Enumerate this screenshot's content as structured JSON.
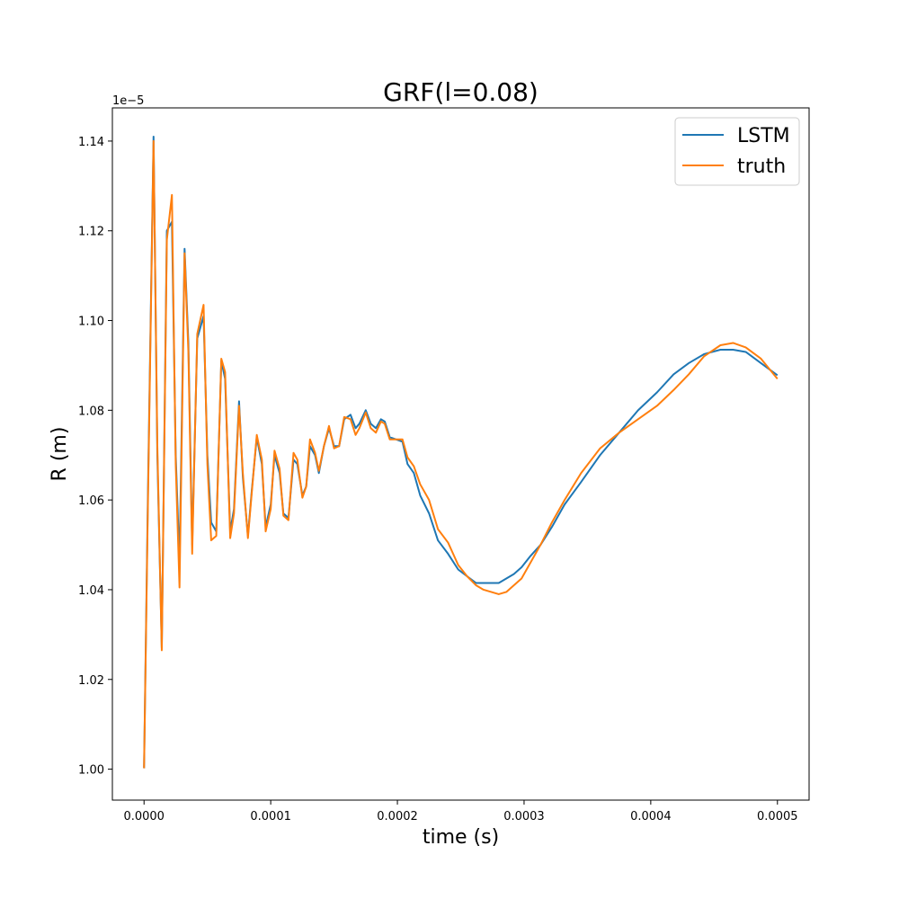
{
  "chart_data": {
    "type": "line",
    "title": "GRF(l=0.08)",
    "xlabel": "time (s)",
    "ylabel": "R (m)",
    "y_offset_label": "1e−5",
    "xlim": [
      -2.5e-05,
      0.000525
    ],
    "ylim": [
      0.9931,
      1.1474
    ],
    "x_ticks": [
      0.0,
      0.0001,
      0.0002,
      0.0003,
      0.0004,
      0.0005
    ],
    "x_tick_labels": [
      "0.0000",
      "0.0001",
      "0.0002",
      "0.0003",
      "0.0004",
      "0.0005"
    ],
    "y_ticks": [
      1.0,
      1.02,
      1.04,
      1.06,
      1.08,
      1.1,
      1.12,
      1.14
    ],
    "y_tick_labels": [
      "1.00",
      "1.02",
      "1.04",
      "1.06",
      "1.08",
      "1.10",
      "1.12",
      "1.14"
    ],
    "legend_position": "top-right",
    "grid": false,
    "series": [
      {
        "name": "LSTM",
        "color": "#1f77b4",
        "x": [
          0.0,
          3e-06,
          7.5e-06,
          1.05e-05,
          1.4e-05,
          1.8e-05,
          2.2e-05,
          2.5e-05,
          2.8e-05,
          3.2e-05,
          3.5e-05,
          3.8e-05,
          4.2e-05,
          4.7e-05,
          5e-05,
          5.3e-05,
          5.7e-05,
          6.1e-05,
          6.4e-05,
          6.8e-05,
          7.1e-05,
          7.5e-05,
          7.8e-05,
          8.2e-05,
          8.5e-05,
          8.9e-05,
          9.3e-05,
          9.6e-05,
          0.0001,
          0.000103,
          0.000107,
          0.00011,
          0.000114,
          0.000118,
          0.000121,
          0.000125,
          0.000128,
          0.000131,
          0.000135,
          0.000138,
          0.000142,
          0.000146,
          0.00015,
          0.000154,
          0.000158,
          0.000163,
          0.000167,
          0.00017,
          0.000175,
          0.000179,
          0.000183,
          0.000187,
          0.00019,
          0.000194,
          0.000199,
          0.000204,
          0.000208,
          0.000213,
          0.000218,
          0.000225,
          0.000232,
          0.00024,
          0.000248,
          0.000255,
          0.000262,
          0.000268,
          0.000274,
          0.00028,
          0.000286,
          0.000292,
          0.000298,
          0.000305,
          0.000313,
          0.000322,
          0.000332,
          0.000345,
          0.00036,
          0.000375,
          0.00039,
          0.000405,
          0.000418,
          0.00043,
          0.000442,
          0.000455,
          0.000465,
          0.000475,
          0.000487,
          0.0005
        ],
        "y": [
          1.0002,
          1.06,
          1.141,
          1.07,
          1.027,
          1.12,
          1.122,
          1.07,
          1.046,
          1.116,
          1.095,
          1.05,
          1.096,
          1.101,
          1.07,
          1.055,
          1.053,
          1.091,
          1.087,
          1.053,
          1.058,
          1.082,
          1.065,
          1.052,
          1.062,
          1.074,
          1.068,
          1.054,
          1.059,
          1.07,
          1.066,
          1.057,
          1.056,
          1.069,
          1.068,
          1.061,
          1.063,
          1.072,
          1.07,
          1.066,
          1.072,
          1.076,
          1.072,
          1.072,
          1.078,
          1.079,
          1.076,
          1.077,
          1.08,
          1.077,
          1.076,
          1.078,
          1.0775,
          1.074,
          1.0735,
          1.073,
          1.068,
          1.066,
          1.061,
          1.057,
          1.051,
          1.048,
          1.0445,
          1.043,
          1.0415,
          1.0415,
          1.0415,
          1.0415,
          1.0425,
          1.0435,
          1.045,
          1.0475,
          1.05,
          1.054,
          1.059,
          1.064,
          1.07,
          1.075,
          1.08,
          1.084,
          1.088,
          1.0905,
          1.0925,
          1.0935,
          1.0935,
          1.093,
          1.0905,
          1.0878
        ]
      },
      {
        "name": "truth",
        "color": "#ff7f0e",
        "x": [
          0.0,
          3e-06,
          7.5e-06,
          1.05e-05,
          1.4e-05,
          1.8e-05,
          2.2e-05,
          2.5e-05,
          2.8e-05,
          3.2e-05,
          3.5e-05,
          3.8e-05,
          4.2e-05,
          4.7e-05,
          5e-05,
          5.3e-05,
          5.7e-05,
          6.1e-05,
          6.4e-05,
          6.8e-05,
          7.1e-05,
          7.5e-05,
          7.8e-05,
          8.2e-05,
          8.5e-05,
          8.9e-05,
          9.3e-05,
          9.6e-05,
          0.0001,
          0.000103,
          0.000107,
          0.00011,
          0.000114,
          0.000118,
          0.000121,
          0.000125,
          0.000128,
          0.000131,
          0.000135,
          0.000138,
          0.000142,
          0.000146,
          0.00015,
          0.000154,
          0.000158,
          0.000163,
          0.000167,
          0.00017,
          0.000175,
          0.000179,
          0.000183,
          0.000187,
          0.00019,
          0.000194,
          0.000199,
          0.000204,
          0.000208,
          0.000213,
          0.000218,
          0.000225,
          0.000232,
          0.00024,
          0.000248,
          0.000255,
          0.000262,
          0.000268,
          0.000274,
          0.00028,
          0.000286,
          0.000292,
          0.000298,
          0.000305,
          0.000313,
          0.000322,
          0.000332,
          0.000345,
          0.00036,
          0.000375,
          0.00039,
          0.000405,
          0.000418,
          0.00043,
          0.000442,
          0.000455,
          0.000465,
          0.000475,
          0.000487,
          0.0005
        ],
        "y": [
          1.0002,
          1.058,
          1.14,
          1.072,
          1.0265,
          1.118,
          1.128,
          1.068,
          1.0405,
          1.115,
          1.093,
          1.048,
          1.097,
          1.1035,
          1.068,
          1.051,
          1.052,
          1.0915,
          1.0885,
          1.0515,
          1.057,
          1.081,
          1.066,
          1.0515,
          1.0615,
          1.0745,
          1.069,
          1.053,
          1.058,
          1.071,
          1.067,
          1.0565,
          1.0555,
          1.0705,
          1.069,
          1.0605,
          1.063,
          1.0735,
          1.0705,
          1.0665,
          1.072,
          1.0765,
          1.0715,
          1.072,
          1.0785,
          1.078,
          1.0745,
          1.076,
          1.0795,
          1.076,
          1.075,
          1.0775,
          1.077,
          1.0735,
          1.0735,
          1.0735,
          1.0695,
          1.0675,
          1.0635,
          1.06,
          1.0535,
          1.0505,
          1.0455,
          1.043,
          1.041,
          1.04,
          1.0395,
          1.039,
          1.0395,
          1.041,
          1.0425,
          1.046,
          1.05,
          1.055,
          1.06,
          1.066,
          1.0715,
          1.075,
          1.078,
          1.081,
          1.0845,
          1.088,
          1.092,
          1.0945,
          1.095,
          1.094,
          1.0915,
          1.087
        ]
      }
    ]
  }
}
